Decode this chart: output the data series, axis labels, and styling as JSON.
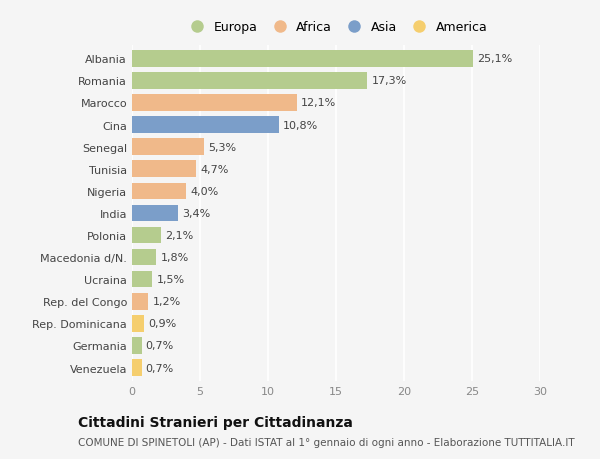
{
  "countries": [
    "Albania",
    "Romania",
    "Marocco",
    "Cina",
    "Senegal",
    "Tunisia",
    "Nigeria",
    "India",
    "Polonia",
    "Macedonia d/N.",
    "Ucraina",
    "Rep. del Congo",
    "Rep. Dominicana",
    "Germania",
    "Venezuela"
  ],
  "values": [
    25.1,
    17.3,
    12.1,
    10.8,
    5.3,
    4.7,
    4.0,
    3.4,
    2.1,
    1.8,
    1.5,
    1.2,
    0.9,
    0.7,
    0.7
  ],
  "labels": [
    "25,1%",
    "17,3%",
    "12,1%",
    "10,8%",
    "5,3%",
    "4,7%",
    "4,0%",
    "3,4%",
    "2,1%",
    "1,8%",
    "1,5%",
    "1,2%",
    "0,9%",
    "0,7%",
    "0,7%"
  ],
  "continents": [
    "Europa",
    "Europa",
    "Africa",
    "Asia",
    "Africa",
    "Africa",
    "Africa",
    "Asia",
    "Europa",
    "Europa",
    "Europa",
    "Africa",
    "America",
    "Europa",
    "America"
  ],
  "colors": {
    "Europa": "#b5cc8e",
    "Africa": "#f0b98a",
    "Asia": "#7b9ec9",
    "America": "#f5ce6e"
  },
  "legend_order": [
    "Europa",
    "Africa",
    "Asia",
    "America"
  ],
  "legend_colors": [
    "#b5cc8e",
    "#f0b98a",
    "#7b9ec9",
    "#f5ce6e"
  ],
  "xlim": [
    0,
    30
  ],
  "xticks": [
    0,
    5,
    10,
    15,
    20,
    25,
    30
  ],
  "background_color": "#f5f5f5",
  "title": "Cittadini Stranieri per Cittadinanza",
  "subtitle": "COMUNE DI SPINETOLI (AP) - Dati ISTAT al 1° gennaio di ogni anno - Elaborazione TUTTITALIA.IT",
  "bar_height": 0.75,
  "label_fontsize": 8,
  "axis_label_fontsize": 8,
  "tick_fontsize": 8,
  "title_fontsize": 10,
  "subtitle_fontsize": 7.5
}
